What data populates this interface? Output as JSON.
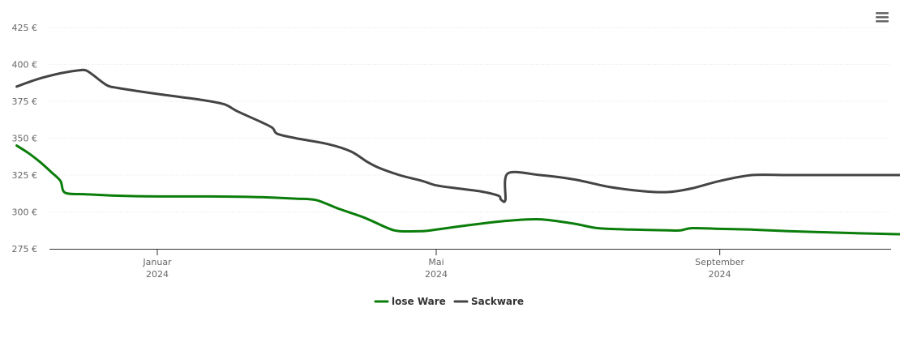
{
  "menu": {
    "icon": "hamburger-menu-icon"
  },
  "chart_data": {
    "type": "line",
    "title": "",
    "xlabel": "",
    "ylabel": "",
    "x_range": [
      "2023-11-01",
      "2024-12-31"
    ],
    "ylim": [
      275,
      425
    ],
    "yticks": [
      {
        "value": 275,
        "label": "275 €"
      },
      {
        "value": 300,
        "label": "300 €"
      },
      {
        "value": 325,
        "label": "325 €"
      },
      {
        "value": 350,
        "label": "350 €"
      },
      {
        "value": 375,
        "label": "375 €"
      },
      {
        "value": 400,
        "label": "400 €"
      },
      {
        "value": 425,
        "label": "425 €"
      }
    ],
    "xticks": [
      {
        "date": "2024-01-01",
        "label": "Januar",
        "label2": "2024"
      },
      {
        "date": "2024-05-01",
        "label": "Mai",
        "label2": "2024"
      },
      {
        "date": "2024-09-01",
        "label": "September",
        "label2": "2024"
      }
    ],
    "grid": true,
    "legend_position": "bottom-center",
    "series": [
      {
        "name": "lose Ware",
        "color": "#0a7d0a",
        "points": [
          [
            "2023-11-01",
            345
          ],
          [
            "2023-11-06",
            340
          ],
          [
            "2023-11-11",
            334
          ],
          [
            "2023-11-16",
            327
          ],
          [
            "2023-11-20",
            321
          ],
          [
            "2023-11-22",
            313
          ],
          [
            "2023-12-01",
            312
          ],
          [
            "2023-12-15",
            311
          ],
          [
            "2024-01-01",
            310.5
          ],
          [
            "2024-01-15",
            310.5
          ],
          [
            "2024-02-01",
            310.4
          ],
          [
            "2024-02-15",
            310
          ],
          [
            "2024-03-01",
            309
          ],
          [
            "2024-03-10",
            308
          ],
          [
            "2024-03-20",
            302
          ],
          [
            "2024-03-31",
            296
          ],
          [
            "2024-04-10",
            289
          ],
          [
            "2024-04-15",
            287
          ],
          [
            "2024-04-25",
            287
          ],
          [
            "2024-05-01",
            288
          ],
          [
            "2024-05-15",
            291
          ],
          [
            "2024-06-01",
            294
          ],
          [
            "2024-06-15",
            295
          ],
          [
            "2024-06-30",
            292
          ],
          [
            "2024-07-10",
            289
          ],
          [
            "2024-07-25",
            288
          ],
          [
            "2024-08-10",
            287.5
          ],
          [
            "2024-08-15",
            287.5
          ],
          [
            "2024-08-20",
            289
          ],
          [
            "2024-09-01",
            288.5
          ],
          [
            "2024-09-15",
            288
          ],
          [
            "2024-10-01",
            287
          ],
          [
            "2024-11-01",
            285.5
          ],
          [
            "2024-12-01",
            284.5
          ],
          [
            "2024-12-31",
            283.5
          ]
        ]
      },
      {
        "name": "Sackware",
        "color": "#444444",
        "points": [
          [
            "2023-11-01",
            385
          ],
          [
            "2023-11-10",
            390
          ],
          [
            "2023-11-20",
            394
          ],
          [
            "2023-11-28",
            396
          ],
          [
            "2023-12-01",
            396
          ],
          [
            "2023-12-04",
            393
          ],
          [
            "2023-12-10",
            386
          ],
          [
            "2023-12-15",
            384
          ],
          [
            "2024-01-01",
            380
          ],
          [
            "2024-01-20",
            376
          ],
          [
            "2024-01-30",
            373
          ],
          [
            "2024-02-05",
            368
          ],
          [
            "2024-02-15",
            361
          ],
          [
            "2024-02-20",
            357
          ],
          [
            "2024-02-22",
            353
          ],
          [
            "2024-03-01",
            350
          ],
          [
            "2024-03-15",
            346
          ],
          [
            "2024-03-25",
            341
          ],
          [
            "2024-04-01",
            334
          ],
          [
            "2024-04-06",
            330
          ],
          [
            "2024-04-15",
            325
          ],
          [
            "2024-04-25",
            321
          ],
          [
            "2024-05-01",
            318
          ],
          [
            "2024-05-10",
            316
          ],
          [
            "2024-05-20",
            314
          ],
          [
            "2024-05-28",
            311
          ],
          [
            "2024-05-29",
            308.5
          ],
          [
            "2024-05-31",
            308
          ],
          [
            "2024-06-01",
            326
          ],
          [
            "2024-06-15",
            325
          ],
          [
            "2024-06-30",
            322
          ],
          [
            "2024-07-15",
            317
          ],
          [
            "2024-07-30",
            314
          ],
          [
            "2024-08-10",
            313.5
          ],
          [
            "2024-08-20",
            316
          ],
          [
            "2024-09-01",
            321
          ],
          [
            "2024-09-15",
            325
          ],
          [
            "2024-10-01",
            325
          ],
          [
            "2024-11-01",
            325
          ],
          [
            "2024-11-25",
            325
          ],
          [
            "2024-12-01",
            325
          ],
          [
            "2024-12-03",
            325
          ],
          [
            "2024-12-05",
            329
          ],
          [
            "2024-12-15",
            335
          ],
          [
            "2024-12-25",
            338
          ],
          [
            "2024-12-31",
            340
          ]
        ]
      }
    ]
  }
}
